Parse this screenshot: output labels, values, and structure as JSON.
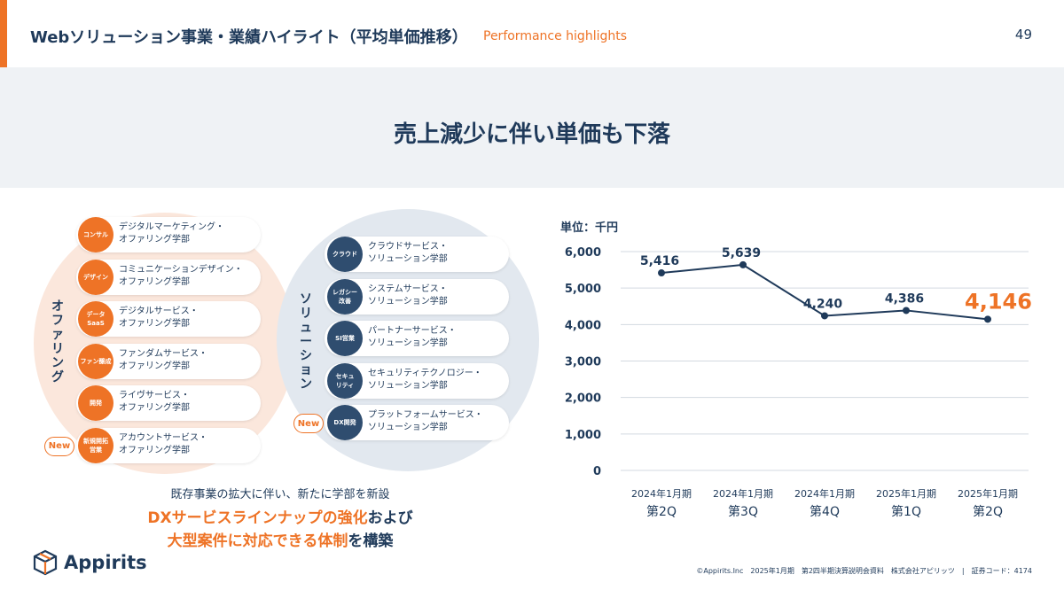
{
  "header": {
    "title": "Webソリューション事業・業績ハイライト（平均単価推移）",
    "subtitle": "Performance highlights",
    "page_number": "49"
  },
  "banner": {
    "headline": "売上減少に伴い単価も下落"
  },
  "offering": {
    "vertical_label": "オファリング",
    "items": [
      {
        "badge": "コンサル",
        "line1": "デジタルマーケティング・",
        "line2": "オファリング学部"
      },
      {
        "badge": "デザイン",
        "line1": "コミュニケーションデザイン・",
        "line2": "オファリング学部"
      },
      {
        "badge": "データ\nSaaS",
        "line1": "デジタルサービス・",
        "line2": "オファリング学部"
      },
      {
        "badge": "ファン醸成",
        "line1": "ファンダムサービス・",
        "line2": "オファリング学部"
      },
      {
        "badge": "開発",
        "line1": "ライヴサービス・",
        "line2": "オファリング学部"
      },
      {
        "badge": "新規開拓\n営業",
        "line1": "アカウントサービス・",
        "line2": "オファリング学部",
        "new": "New"
      }
    ]
  },
  "solution": {
    "vertical_label": "ソリューション",
    "items": [
      {
        "badge": "クラウド",
        "line1": "クラウドサービス・",
        "line2": "ソリューション学部"
      },
      {
        "badge": "レガシー\n改善",
        "line1": "システムサービス・",
        "line2": "ソリューション学部"
      },
      {
        "badge": "SI営業",
        "line1": "パートナーサービス・",
        "line2": "ソリューション学部"
      },
      {
        "badge": "セキュ\nリティ",
        "line1": "セキュリティテクノロジー・",
        "line2": "ソリューション学部"
      },
      {
        "badge": "DX開発",
        "line1": "プラットフォームサービス・",
        "line2": "ソリューション学部",
        "new": "New"
      }
    ]
  },
  "caption": {
    "line1": "既存事業の拡大に伴い、新たに学部を新設",
    "line2_highlight": "DXサービスラインナップの強化",
    "line2_rest": "および",
    "line3_highlight": "大型案件に対応できる体制",
    "line3_rest": "を構築"
  },
  "chart_data": {
    "type": "line",
    "unit_label": "単位：千円",
    "categories": [
      [
        "2024年1月期",
        "第2Q"
      ],
      [
        "2024年1月期",
        "第3Q"
      ],
      [
        "2024年1月期",
        "第4Q"
      ],
      [
        "2025年1月期",
        "第1Q"
      ],
      [
        "2025年1月期",
        "第2Q"
      ]
    ],
    "values": [
      5416,
      5639,
      4240,
      4386,
      4146
    ],
    "value_labels": [
      "5,416",
      "5,639",
      "4,240",
      "4,386",
      "4,146"
    ],
    "y_ticks": [
      "0",
      "1,000",
      "2,000",
      "3,000",
      "4,000",
      "5,000",
      "6,000"
    ],
    "ylim": [
      0,
      6000
    ],
    "grid": true,
    "line_color": "#1f3a5a",
    "highlight_color": "#ee7326"
  },
  "logo": {
    "text": "Appirits"
  },
  "footer": {
    "text": "©Appirits.Inc　2025年1月期　第2四半期決算説明会資料　株式会社アピリッツ　|　証券コード：4174"
  },
  "colors": {
    "accent": "#ee7326",
    "navy": "#1f3a5a",
    "badge_navy": "#2f4d6f"
  }
}
